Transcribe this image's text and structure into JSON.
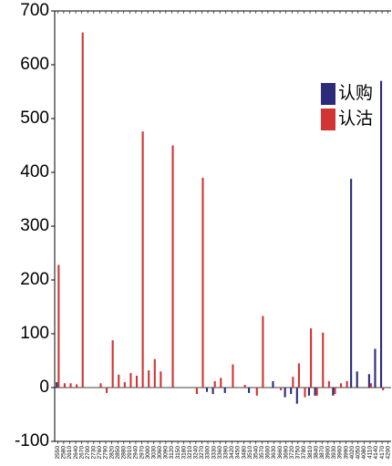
{
  "chart_data": {
    "type": "bar",
    "categories": [
      "2550",
      "2580",
      "2610",
      "2640",
      "2670",
      "2700",
      "2730",
      "2760",
      "2790",
      "2820",
      "2850",
      "2880",
      "2910",
      "2940",
      "2970",
      "3000",
      "3030",
      "3060",
      "3090",
      "3120",
      "3150",
      "3180",
      "3210",
      "3240",
      "3270",
      "3300",
      "3330",
      "3360",
      "3390",
      "3420",
      "3450",
      "3480",
      "3510",
      "3540",
      "3570",
      "3600",
      "3630",
      "3660",
      "3690",
      "3720",
      "3750",
      "3780",
      "3810",
      "3840",
      "3870",
      "3900",
      "3930",
      "3960",
      "3990",
      "4020",
      "4050",
      "4080",
      "4110",
      "4140",
      "4170",
      "4200"
    ],
    "series": [
      {
        "name": "认购",
        "color": "#2b2b7a",
        "values": [
          10,
          0,
          0,
          0,
          0,
          0,
          0,
          0,
          0,
          0,
          0,
          0,
          0,
          0,
          0,
          0,
          0,
          0,
          0,
          0,
          0,
          0,
          0,
          0,
          0,
          -8,
          -12,
          0,
          -10,
          0,
          0,
          0,
          -10,
          0,
          0,
          0,
          12,
          0,
          -18,
          -12,
          -30,
          0,
          -15,
          -15,
          0,
          0,
          -15,
          0,
          0,
          388,
          30,
          0,
          25,
          72,
          570,
          0
        ]
      },
      {
        "name": "认沽",
        "color": "#d03434",
        "values": [
          228,
          8,
          8,
          6,
          660,
          0,
          0,
          8,
          -10,
          88,
          24,
          10,
          27,
          22,
          476,
          32,
          53,
          30,
          0,
          450,
          0,
          0,
          0,
          -12,
          390,
          0,
          12,
          18,
          0,
          43,
          0,
          5,
          0,
          -15,
          133,
          0,
          0,
          -5,
          0,
          20,
          45,
          -18,
          110,
          -15,
          102,
          12,
          -12,
          8,
          12,
          0,
          0,
          0,
          8,
          0,
          -5,
          0
        ]
      }
    ],
    "ylim": [
      -100,
      700
    ],
    "yticks": [
      -100,
      0,
      100,
      200,
      300,
      400,
      500,
      600,
      700
    ],
    "legend": "upper right"
  }
}
